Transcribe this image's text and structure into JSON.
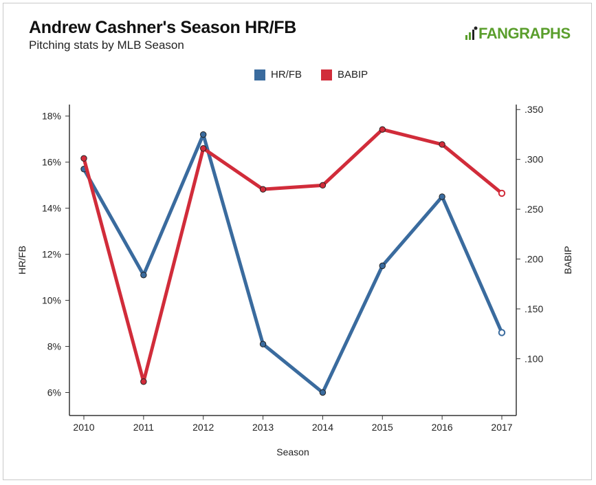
{
  "header": {
    "title": "Andrew Cashner's Season HR/FB",
    "subtitle": "Pitching stats by MLB Season",
    "logo_text": "FANGRAPHS"
  },
  "colors": {
    "hrfb": "#3a6b9e",
    "babip": "#d12c3a",
    "logo": "#5a9e2c"
  },
  "chart_data": {
    "type": "line",
    "title": "Andrew Cashner's Season HR/FB",
    "subtitle": "Pitching stats by MLB Season",
    "xlabel": "Season",
    "ylabel_left": "HR/FB",
    "ylabel_right": "BABIP",
    "categories": [
      "2010",
      "2011",
      "2012",
      "2013",
      "2014",
      "2015",
      "2016",
      "2017"
    ],
    "y_left_range": [
      5,
      18.5
    ],
    "y_left_ticks": [
      "6%",
      "8%",
      "10%",
      "12%",
      "14%",
      "16%",
      "18%"
    ],
    "y_left_tick_values": [
      6,
      8,
      10,
      12,
      14,
      16,
      18
    ],
    "y_right_range": [
      0.043,
      0.355
    ],
    "y_right_ticks": [
      ".100",
      ".150",
      ".200",
      ".250",
      ".300",
      ".350"
    ],
    "y_right_tick_values": [
      0.1,
      0.15,
      0.2,
      0.25,
      0.3,
      0.35
    ],
    "legend_position": "top-center",
    "series": [
      {
        "name": "HR/FB",
        "axis": "left",
        "color": "#3a6b9e",
        "values": [
          15.7,
          11.1,
          17.2,
          8.1,
          6.0,
          11.5,
          14.5,
          8.6
        ],
        "last_point_hollow": true
      },
      {
        "name": "BABIP",
        "axis": "right",
        "color": "#d12c3a",
        "values": [
          0.301,
          0.077,
          0.311,
          0.27,
          0.274,
          0.33,
          0.315,
          0.266
        ],
        "last_point_hollow": true
      }
    ]
  }
}
